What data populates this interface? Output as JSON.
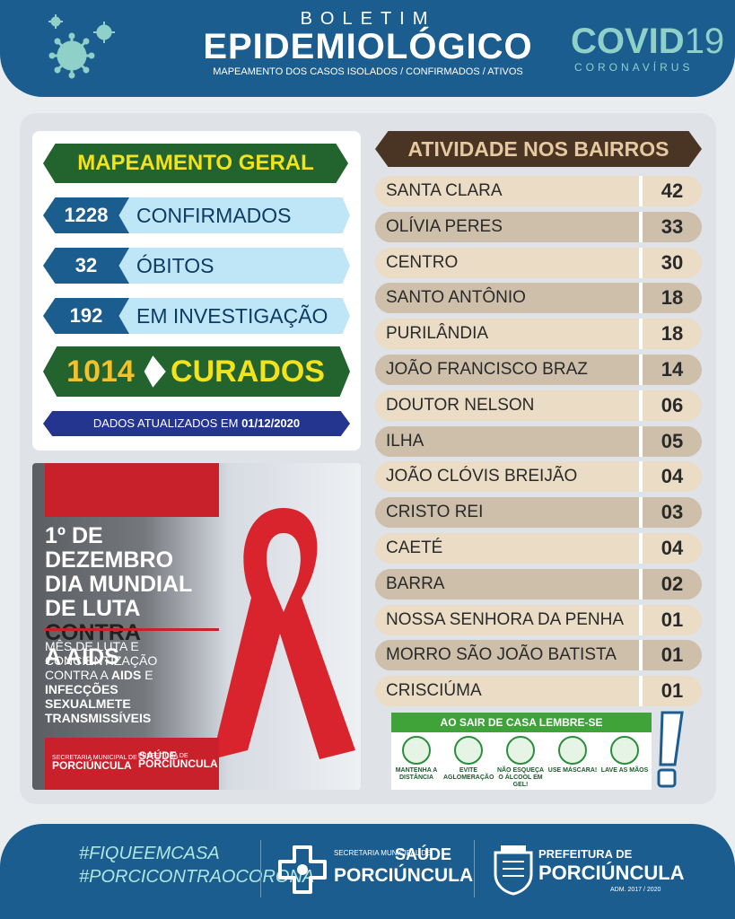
{
  "header": {
    "kicker": "BOLETIM",
    "title": "EPIDEMIOLÓGICO",
    "subtitle": "MAPEAMENTO DOS CASOS ISOLADOS / CONFIRMADOS / ATIVOS",
    "covid_main": "COVID",
    "covid_num": "19",
    "covid_sub": "CORONAVÍRUS",
    "icon": "virus-icon"
  },
  "summary": {
    "title": "MAPEAMENTO GERAL",
    "rows": [
      {
        "value": "1228",
        "label": "CONFIRMADOS"
      },
      {
        "value": "32",
        "label": "ÓBITOS"
      },
      {
        "value": "192",
        "label": "EM INVESTIGAÇÃO"
      }
    ],
    "cured": {
      "value": "1014",
      "label": "CURADOS"
    },
    "updated_prefix": "DADOS ATUALIZADOS EM",
    "updated_date": "01/12/2020",
    "colors": {
      "dark_green": "#22632e",
      "yellow": "#f3e21c",
      "navy": "#1c5d8f",
      "light_blue": "#bfe6f6"
    }
  },
  "promo": {
    "line1": "1º DE DEZEMBRO",
    "line2": "DIA MUNDIAL",
    "line3a": "DE LUTA",
    "line3b": "CONTRA",
    "line4": "A AIDS",
    "body1": "MÊS DE LUTA E CONCIENTIZAÇÃO CONTRA A",
    "body_bold1": "AIDS",
    "body2": "E",
    "body_bold2": "INFECÇÕES SEXUALMETE TRANSMISSÍVEIS",
    "logo1_small": "SECRETARIA MUNICIPAL DE",
    "logo1_big1": "SAÚDE",
    "logo1_big2": "PORCIÚNCULA",
    "logo2_small": "PREFEITURA DE",
    "logo2_big": "PORCIÚNCULA",
    "ribbon_icon": "red-ribbon-icon",
    "accent": "#c8212b"
  },
  "neighborhoods": {
    "title": "ATIVIDADE NOS BAIRROS",
    "rows": [
      {
        "name": "SANTA CLARA",
        "value": "42"
      },
      {
        "name": "OLÍVIA PERES",
        "value": "33"
      },
      {
        "name": "CENTRO",
        "value": "30"
      },
      {
        "name": "SANTO ANTÔNIO",
        "value": "18"
      },
      {
        "name": "PURILÂNDIA",
        "value": "18"
      },
      {
        "name": "JOÃO FRANCISCO BRAZ",
        "value": "14"
      },
      {
        "name": "DOUTOR NELSON",
        "value": "06"
      },
      {
        "name": "ILHA",
        "value": "05"
      },
      {
        "name": "JOÃO CLÓVIS BREIJÃO",
        "value": "04"
      },
      {
        "name": "CRISTO REI",
        "value": "03"
      },
      {
        "name": "CAETÉ",
        "value": "04"
      },
      {
        "name": "BARRA",
        "value": "02"
      },
      {
        "name": "NOSSA SENHORA DA PENHA",
        "value": "01"
      },
      {
        "name": "MORRO SÃO JOÃO BATISTA",
        "value": "01"
      },
      {
        "name": "CRISCIÚMA",
        "value": "01"
      }
    ]
  },
  "prevention": {
    "title": "AO SAIR DE CASA LEMBRE-SE",
    "items": [
      {
        "label": "MANTENHA A DISTÂNCIA",
        "icon": "distance-icon"
      },
      {
        "label": "EVITE AGLOMERAÇÃO",
        "icon": "no-crowd-icon"
      },
      {
        "label": "NÃO ESQUEÇA O ÁLCOOL EM GEL!",
        "icon": "sanitizer-icon"
      },
      {
        "label": "USE MÁSCARA!",
        "icon": "mask-icon"
      },
      {
        "label": "LAVE AS MÃOS",
        "icon": "hand-wash-icon"
      }
    ]
  },
  "footer": {
    "tag1": "#FIQUEEMCASA",
    "tag2": "#PORCICONTRAOCORONA",
    "sec_small": "SECRETARIA MUNICIPAL DE",
    "sec_big1": "SAÚDE",
    "sec_big2": "PORCIÚNCULA",
    "pref_small": "PREFEITURA DE",
    "pref_big": "PORCIÚNCULA",
    "adm": "ADM. 2017 / 2020"
  }
}
